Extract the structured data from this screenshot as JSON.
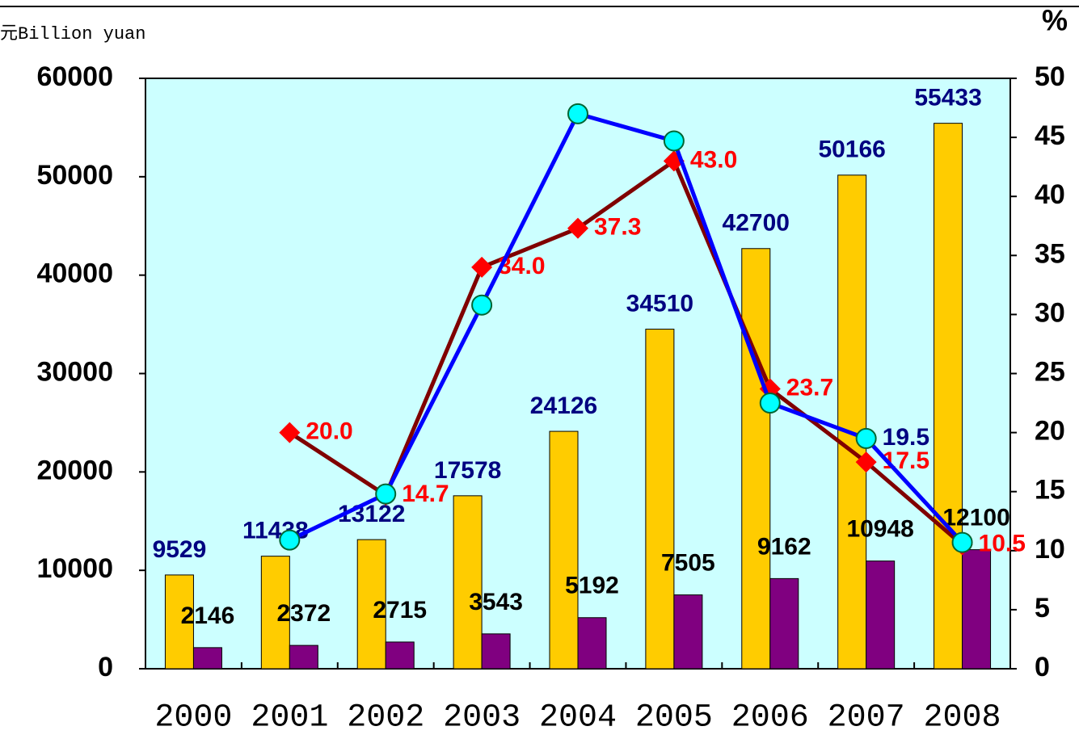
{
  "chart_data": {
    "type": "bar",
    "y_label": "元Billion yuan",
    "y2_label": "%",
    "categories": [
      "2000",
      "2001",
      "2002",
      "2003",
      "2004",
      "2005",
      "2006",
      "2007",
      "2008"
    ],
    "series": [
      {
        "type": "bar",
        "color": "#ffcc00",
        "label_color": "#000080",
        "values": [
          9529,
          11438,
          13122,
          17578,
          24126,
          34510,
          42700,
          50166,
          55433
        ]
      },
      {
        "type": "bar",
        "color": "#800080",
        "label_color": "#000000",
        "values": [
          2146,
          2372,
          2715,
          3543,
          5192,
          7505,
          9162,
          10948,
          12100
        ]
      },
      {
        "type": "line",
        "axis": "y2",
        "color": "#800000",
        "marker": "diamond",
        "marker_color": "#ff0000",
        "label_color": "#ff0000",
        "values": [
          null,
          20.0,
          14.7,
          34.0,
          37.3,
          43.0,
          23.7,
          17.5,
          10.5
        ],
        "value_labels": [
          null,
          "20.0",
          "14.7",
          "34.0",
          "37.3",
          "43.0",
          "23.7",
          "17.5",
          "10.5"
        ]
      },
      {
        "type": "line",
        "axis": "y2",
        "color": "#0000ff",
        "marker": "circle",
        "marker_color": "#00ffff",
        "label_color": "#000080",
        "values": [
          null,
          10.9,
          14.8,
          30.8,
          47.0,
          44.7,
          22.5,
          19.5,
          10.7
        ],
        "value_labels": [
          null,
          null,
          null,
          null,
          null,
          null,
          null,
          "19.5",
          null
        ]
      }
    ],
    "ylim": [
      0,
      60000
    ],
    "yticks": [
      0,
      10000,
      20000,
      30000,
      40000,
      50000,
      60000
    ],
    "y2lim": [
      0,
      50
    ],
    "y2ticks": [
      0,
      5,
      10,
      15,
      20,
      25,
      30,
      35,
      40,
      45,
      50
    ]
  }
}
